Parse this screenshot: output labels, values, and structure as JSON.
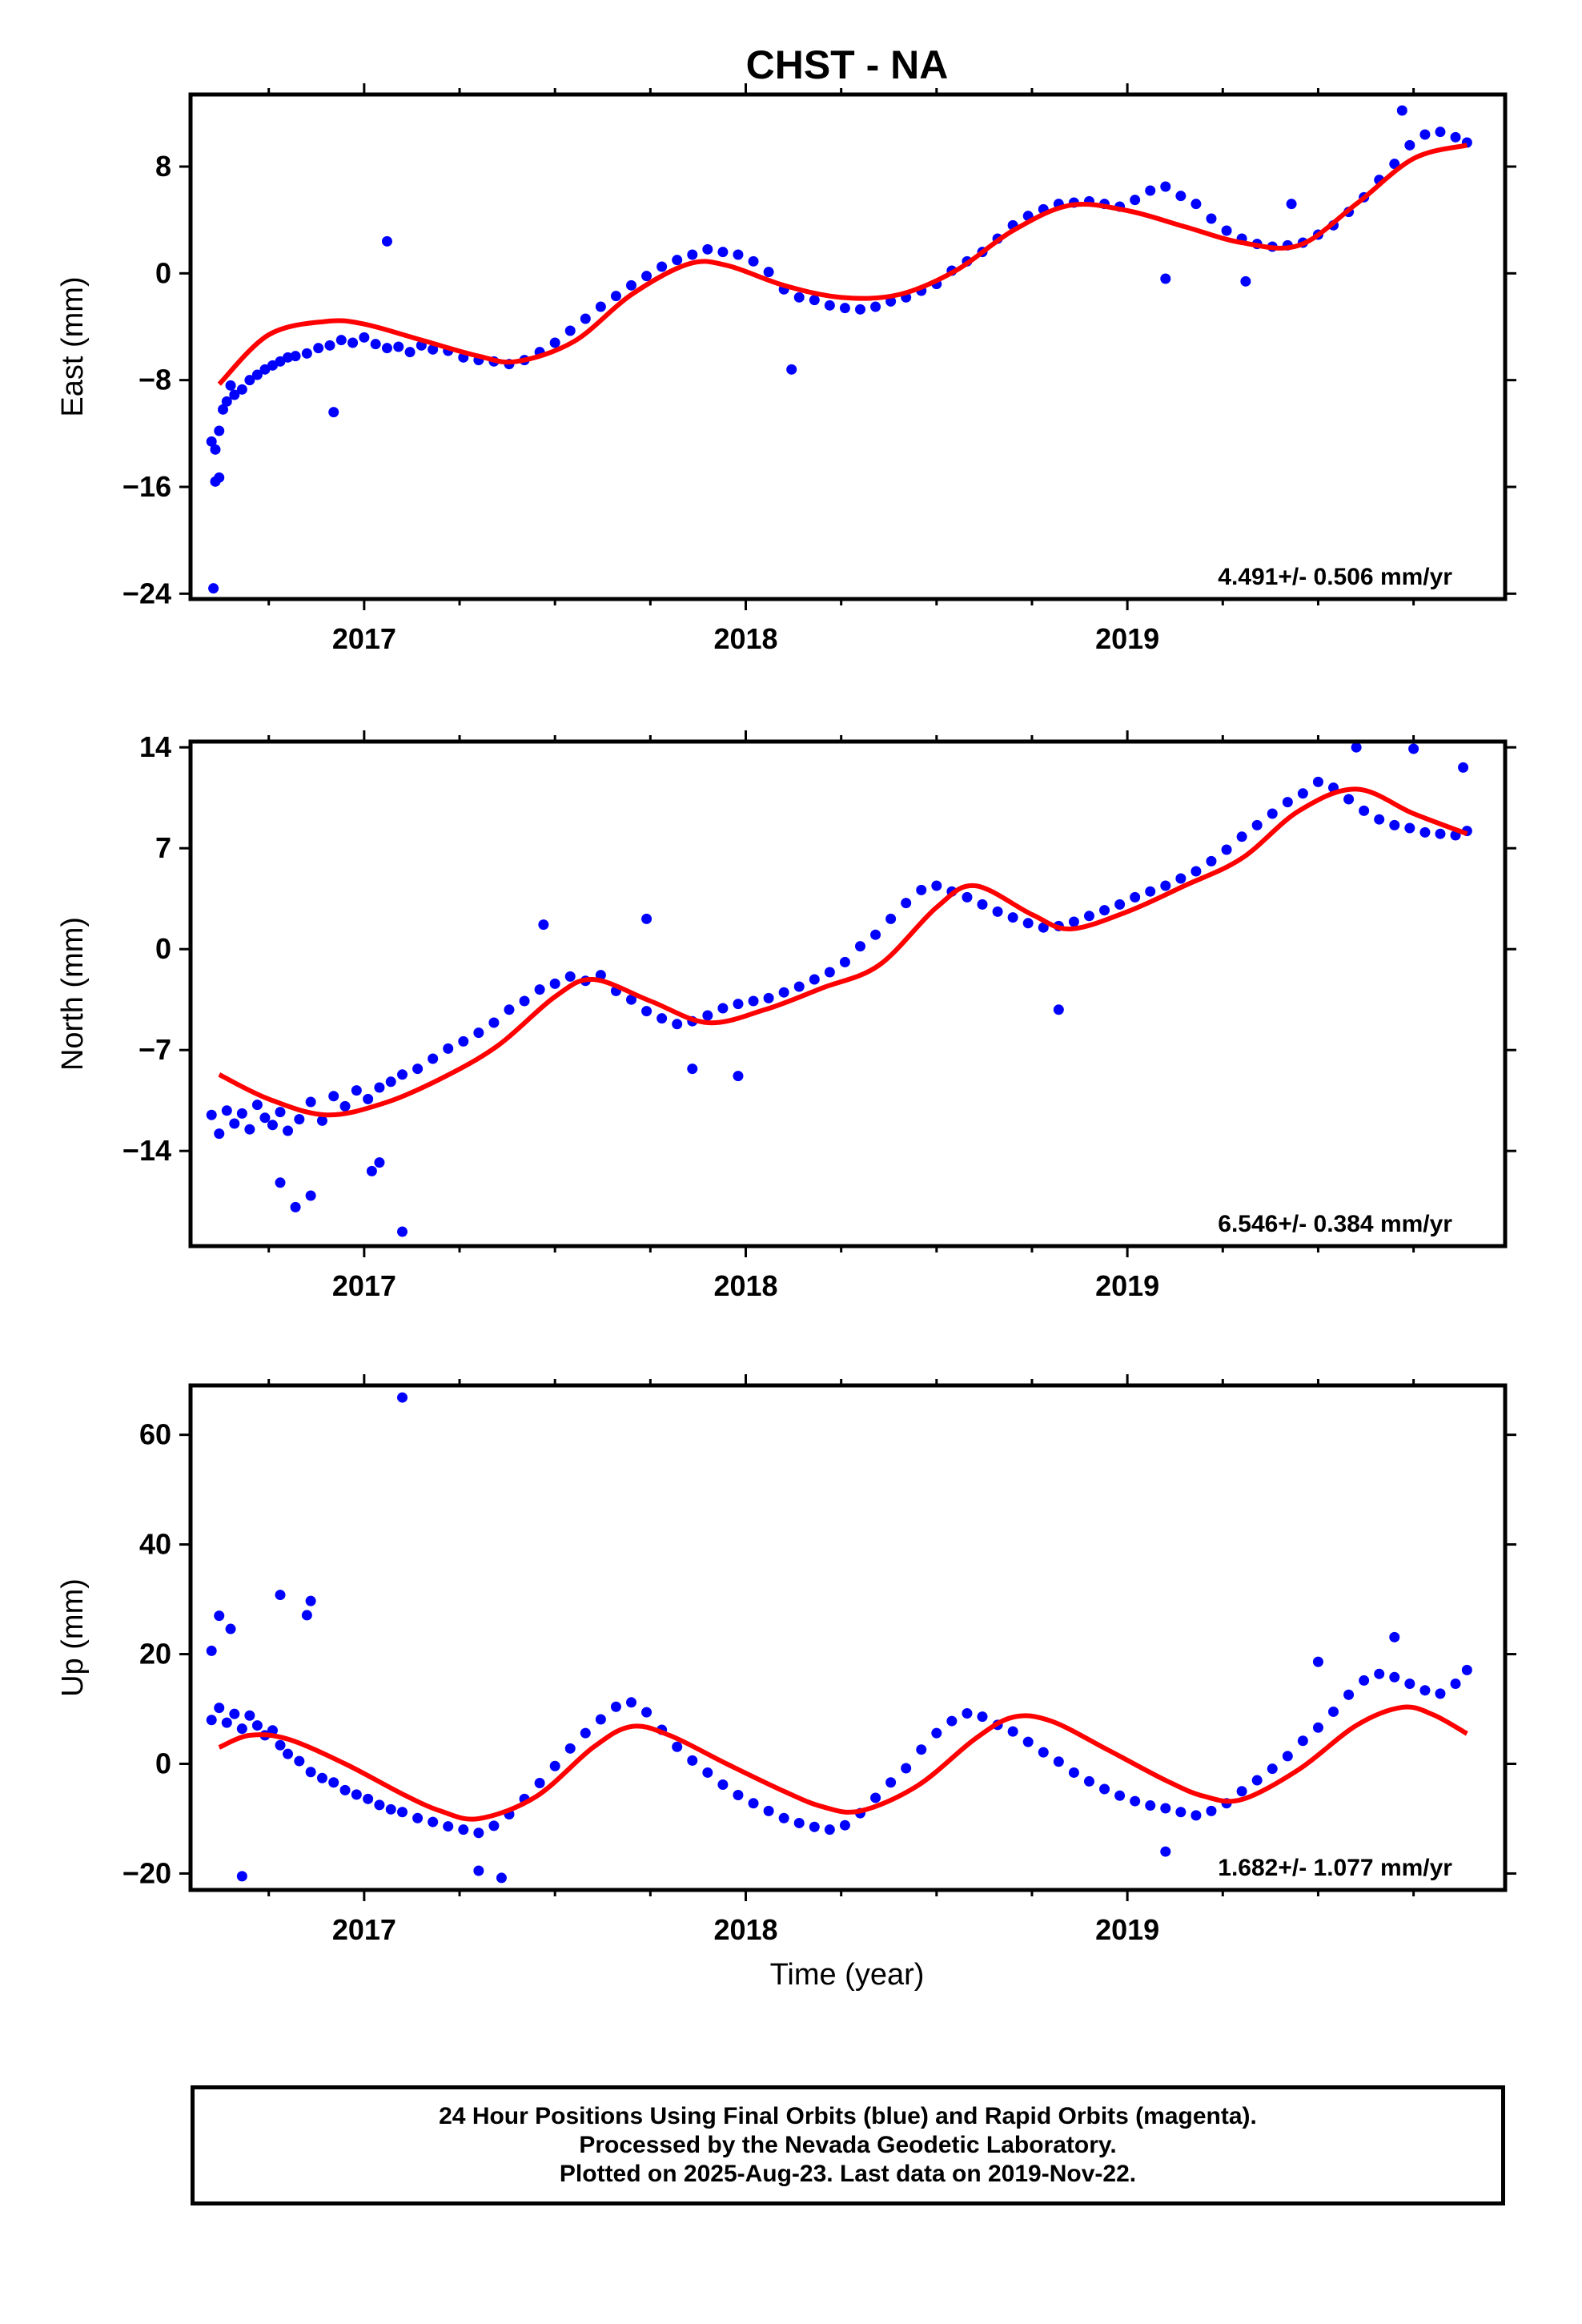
{
  "title": "CHST - NA",
  "x_axis_label": "Time (year)",
  "caption": {
    "line1": "24 Hour Positions Using Final Orbits (blue) and Rapid Orbits (magenta).",
    "line2": "Processed by the Nevada Geodetic Laboratory.",
    "line3": "Plotted on 2025-Aug-23. Last data on 2019-Nov-22."
  },
  "colors": {
    "points": "#0000ff",
    "fit": "#ff0000",
    "frame": "#000000"
  },
  "chart_data": [
    {
      "type": "scatter",
      "ylabel": "East (mm)",
      "xlim": [
        2016.545,
        2019.99
      ],
      "ylim": [
        -24.4,
        13.4
      ],
      "yticks": [
        8,
        0,
        -8,
        -16,
        -24
      ],
      "ytick_labels": [
        "8",
        "0",
        "−8",
        "−16",
        "−24"
      ],
      "xticks": [
        2017,
        2018,
        2019
      ],
      "rate_label": "4.491+/- 0.506 mm/yr",
      "fit_curve": {
        "x": [
          2016.62,
          2016.75,
          2016.9,
          2017.0,
          2017.15,
          2017.3,
          2017.4,
          2017.55,
          2017.7,
          2017.85,
          2017.95,
          2018.1,
          2018.25,
          2018.4,
          2018.55,
          2018.7,
          2018.85,
          2019.0,
          2019.15,
          2019.3,
          2019.45,
          2019.6,
          2019.75,
          2019.89
        ],
        "y": [
          -8.3,
          -4.6,
          -3.6,
          -3.8,
          -5.0,
          -6.2,
          -6.6,
          -5.1,
          -1.6,
          0.7,
          0.6,
          -0.9,
          -1.8,
          -1.6,
          0.2,
          3.2,
          5.1,
          4.7,
          3.5,
          2.3,
          2.1,
          5.2,
          8.6,
          9.6
        ]
      },
      "series": [
        {
          "name": "",
          "x": [
            2016.6,
            2016.61,
            2016.62,
            2016.63,
            2016.64,
            2016.65,
            2016.66,
            2016.68,
            2016.7,
            2016.72,
            2016.74,
            2016.76,
            2016.78,
            2016.8,
            2016.82,
            2016.85,
            2016.88,
            2016.91,
            2016.94,
            2016.97,
            2017.0,
            2017.03,
            2017.06,
            2017.09,
            2017.12,
            2017.15,
            2017.18,
            2017.22,
            2017.26,
            2017.3,
            2017.34,
            2017.38,
            2017.42,
            2017.46,
            2017.5,
            2017.54,
            2017.58,
            2017.62,
            2017.66,
            2017.7,
            2017.74,
            2017.78,
            2017.82,
            2017.86,
            2017.9,
            2017.94,
            2017.98,
            2018.02,
            2018.06,
            2018.1,
            2018.14,
            2018.18,
            2018.22,
            2018.26,
            2018.3,
            2018.34,
            2018.38,
            2018.42,
            2018.46,
            2018.5,
            2018.54,
            2018.58,
            2018.62,
            2018.66,
            2018.7,
            2018.74,
            2018.78,
            2018.82,
            2018.86,
            2018.9,
            2018.94,
            2018.98,
            2019.02,
            2019.06,
            2019.1,
            2019.14,
            2019.18,
            2019.22,
            2019.26,
            2019.3,
            2019.34,
            2019.38,
            2019.42,
            2019.46,
            2019.5,
            2019.54,
            2019.58,
            2019.62,
            2019.66,
            2019.7,
            2019.74,
            2019.78,
            2019.82,
            2019.86,
            2019.89,
            2016.61,
            2016.62,
            2016.605,
            2017.06,
            2016.92,
            2018.12,
            2019.1,
            2019.31,
            2019.43,
            2019.72
          ],
          "y": [
            -12.6,
            -13.2,
            -11.8,
            -10.2,
            -9.6,
            -8.4,
            -9.1,
            -8.7,
            -8.0,
            -7.6,
            -7.2,
            -6.9,
            -6.6,
            -6.3,
            -6.2,
            -6.0,
            -5.6,
            -5.4,
            -5.0,
            -5.2,
            -4.8,
            -5.3,
            -5.6,
            -5.5,
            -5.9,
            -5.4,
            -5.7,
            -5.8,
            -6.3,
            -6.5,
            -6.6,
            -6.8,
            -6.5,
            -5.9,
            -5.2,
            -4.3,
            -3.4,
            -2.5,
            -1.7,
            -0.9,
            -0.2,
            0.5,
            1.0,
            1.4,
            1.8,
            1.6,
            1.4,
            0.9,
            0.1,
            -1.2,
            -1.8,
            -2.0,
            -2.4,
            -2.6,
            -2.7,
            -2.5,
            -2.1,
            -1.8,
            -1.3,
            -0.8,
            0.2,
            0.9,
            1.6,
            2.6,
            3.6,
            4.3,
            4.8,
            5.2,
            5.3,
            5.4,
            5.2,
            5.0,
            5.5,
            6.2,
            6.5,
            5.8,
            5.2,
            4.1,
            3.2,
            2.6,
            2.2,
            2.0,
            2.1,
            2.3,
            2.9,
            3.6,
            4.6,
            5.7,
            7.0,
            8.2,
            9.6,
            10.4,
            10.6,
            10.2,
            9.8,
            -15.6,
            -15.3,
            -23.6,
            2.4,
            -10.4,
            -7.2,
            -0.4,
            -0.6,
            5.2,
            12.2
          ]
        }
      ]
    },
    {
      "type": "scatter",
      "ylabel": "North (mm)",
      "xlim": [
        2016.545,
        2019.99
      ],
      "ylim": [
        -20.6,
        14.4
      ],
      "yticks": [
        14,
        7,
        0,
        -7,
        -14
      ],
      "ytick_labels": [
        "14",
        "7",
        "0",
        "−7",
        "−14"
      ],
      "xticks": [
        2017,
        2018,
        2019
      ],
      "rate_label": "6.546+/- 0.384 mm/yr",
      "fit_curve": {
        "x": [
          2016.62,
          2016.75,
          2016.9,
          2017.05,
          2017.2,
          2017.35,
          2017.5,
          2017.6,
          2017.75,
          2017.9,
          2018.05,
          2018.2,
          2018.35,
          2018.5,
          2018.6,
          2018.75,
          2018.85,
          2019.0,
          2019.15,
          2019.3,
          2019.45,
          2019.6,
          2019.75,
          2019.89
        ],
        "y": [
          -8.7,
          -10.4,
          -11.5,
          -10.7,
          -9.0,
          -6.7,
          -3.3,
          -2.1,
          -3.6,
          -5.1,
          -4.2,
          -2.7,
          -1.1,
          2.9,
          4.4,
          2.4,
          1.4,
          2.6,
          4.4,
          6.3,
          9.6,
          11.1,
          9.4,
          8.0
        ]
      },
      "series": [
        {
          "name": "",
          "x": [
            2016.6,
            2016.62,
            2016.64,
            2016.66,
            2016.68,
            2016.7,
            2016.72,
            2016.74,
            2016.76,
            2016.78,
            2016.8,
            2016.83,
            2016.86,
            2016.89,
            2016.92,
            2016.95,
            2016.98,
            2017.01,
            2017.04,
            2017.07,
            2017.1,
            2017.14,
            2017.18,
            2017.22,
            2017.26,
            2017.3,
            2017.34,
            2017.38,
            2017.42,
            2017.46,
            2017.5,
            2017.54,
            2017.58,
            2017.62,
            2017.66,
            2017.7,
            2017.74,
            2017.78,
            2017.82,
            2017.86,
            2017.9,
            2017.94,
            2017.98,
            2018.02,
            2018.06,
            2018.1,
            2018.14,
            2018.18,
            2018.22,
            2018.26,
            2018.3,
            2018.34,
            2018.38,
            2018.42,
            2018.46,
            2018.5,
            2018.54,
            2018.58,
            2018.62,
            2018.66,
            2018.7,
            2018.74,
            2018.78,
            2018.82,
            2018.86,
            2018.9,
            2018.94,
            2018.98,
            2019.02,
            2019.06,
            2019.1,
            2019.14,
            2019.18,
            2019.22,
            2019.26,
            2019.3,
            2019.34,
            2019.38,
            2019.42,
            2019.46,
            2019.5,
            2019.54,
            2019.58,
            2019.62,
            2019.66,
            2019.7,
            2019.74,
            2019.78,
            2019.82,
            2019.86,
            2019.89,
            2016.78,
            2016.82,
            2016.86,
            2017.02,
            2017.04,
            2017.1,
            2017.47,
            2017.74,
            2017.86,
            2017.98,
            2018.82,
            2019.6,
            2019.75,
            2019.88
          ],
          "y": [
            -11.5,
            -12.8,
            -11.2,
            -12.1,
            -11.4,
            -12.5,
            -10.8,
            -11.7,
            -12.2,
            -11.3,
            -12.6,
            -11.8,
            -10.6,
            -11.9,
            -10.2,
            -10.9,
            -9.8,
            -10.4,
            -9.6,
            -9.2,
            -8.7,
            -8.3,
            -7.6,
            -6.9,
            -6.4,
            -5.8,
            -5.1,
            -4.2,
            -3.6,
            -2.8,
            -2.4,
            -1.9,
            -2.2,
            -1.8,
            -2.9,
            -3.5,
            -4.3,
            -4.8,
            -5.2,
            -5.0,
            -4.6,
            -4.1,
            -3.8,
            -3.6,
            -3.4,
            -3.0,
            -2.6,
            -2.1,
            -1.6,
            -0.9,
            0.2,
            1.0,
            2.1,
            3.2,
            4.1,
            4.4,
            4.0,
            3.6,
            3.1,
            2.6,
            2.2,
            1.8,
            1.5,
            1.6,
            1.9,
            2.3,
            2.7,
            3.1,
            3.6,
            4.0,
            4.4,
            4.9,
            5.4,
            6.1,
            6.9,
            7.8,
            8.6,
            9.4,
            10.2,
            10.8,
            11.6,
            11.2,
            10.4,
            9.6,
            9.0,
            8.6,
            8.4,
            8.1,
            8.0,
            7.9,
            8.2,
            -16.2,
            -17.9,
            -17.1,
            -15.4,
            -14.8,
            -19.6,
            1.7,
            2.1,
            -8.3,
            -8.8,
            -4.2,
            14.0,
            13.9,
            12.6
          ]
        }
      ]
    },
    {
      "type": "scatter",
      "ylabel": "Up (mm)",
      "xlim": [
        2016.545,
        2019.99
      ],
      "ylim": [
        -23,
        69
      ],
      "yticks": [
        60,
        40,
        20,
        0,
        -20
      ],
      "ytick_labels": [
        "60",
        "40",
        "20",
        "0",
        "−20"
      ],
      "xticks": [
        2017,
        2018,
        2019
      ],
      "rate_label": "1.682+/- 1.077 mm/yr",
      "fit_curve": {
        "x": [
          2016.62,
          2016.7,
          2016.8,
          2016.95,
          2017.1,
          2017.2,
          2017.3,
          2017.45,
          2017.6,
          2017.7,
          2017.8,
          2017.95,
          2018.1,
          2018.2,
          2018.3,
          2018.45,
          2018.6,
          2018.7,
          2018.8,
          2018.95,
          2019.1,
          2019.2,
          2019.3,
          2019.45,
          2019.6,
          2019.72,
          2019.8,
          2019.89
        ],
        "y": [
          3.0,
          5.2,
          4.5,
          0.0,
          -5.5,
          -8.6,
          -10.0,
          -6.0,
          3.0,
          6.8,
          5.2,
          0.0,
          -5.0,
          -7.8,
          -8.6,
          -4.0,
          4.5,
          8.5,
          7.8,
          2.5,
          -3.0,
          -5.9,
          -6.5,
          -1.0,
          7.0,
          10.3,
          9.0,
          5.5
        ]
      },
      "series": [
        {
          "name": "",
          "x": [
            2016.6,
            2016.62,
            2016.64,
            2016.66,
            2016.68,
            2016.7,
            2016.72,
            2016.74,
            2016.76,
            2016.78,
            2016.8,
            2016.83,
            2016.86,
            2016.89,
            2016.92,
            2016.95,
            2016.98,
            2017.01,
            2017.04,
            2017.07,
            2017.1,
            2017.14,
            2017.18,
            2017.22,
            2017.26,
            2017.3,
            2017.34,
            2017.38,
            2017.42,
            2017.46,
            2017.5,
            2017.54,
            2017.58,
            2017.62,
            2017.66,
            2017.7,
            2017.74,
            2017.78,
            2017.82,
            2017.86,
            2017.9,
            2017.94,
            2017.98,
            2018.02,
            2018.06,
            2018.1,
            2018.14,
            2018.18,
            2018.22,
            2018.26,
            2018.3,
            2018.34,
            2018.38,
            2018.42,
            2018.46,
            2018.5,
            2018.54,
            2018.58,
            2018.62,
            2018.66,
            2018.7,
            2018.74,
            2018.78,
            2018.82,
            2018.86,
            2018.9,
            2018.94,
            2018.98,
            2019.02,
            2019.06,
            2019.1,
            2019.14,
            2019.18,
            2019.22,
            2019.26,
            2019.3,
            2019.34,
            2019.38,
            2019.42,
            2019.46,
            2019.5,
            2019.54,
            2019.58,
            2019.62,
            2019.66,
            2019.7,
            2019.74,
            2019.78,
            2019.82,
            2019.86,
            2019.89,
            2017.1,
            2016.78,
            2016.85,
            2016.86,
            2016.65,
            2016.6,
            2016.62,
            2016.68,
            2017.3,
            2017.36,
            2019.5,
            2019.1,
            2019.7
          ],
          "y": [
            8.0,
            10.2,
            7.5,
            9.1,
            6.4,
            8.8,
            7.0,
            5.2,
            6.1,
            3.4,
            1.8,
            0.5,
            -1.5,
            -2.6,
            -3.4,
            -4.8,
            -5.6,
            -6.4,
            -7.5,
            -8.3,
            -8.8,
            -9.9,
            -10.6,
            -11.4,
            -12.0,
            -12.6,
            -11.3,
            -9.2,
            -6.4,
            -3.5,
            -0.4,
            2.8,
            5.6,
            8.1,
            10.4,
            11.2,
            9.4,
            6.2,
            3.1,
            0.6,
            -1.6,
            -3.8,
            -5.7,
            -7.2,
            -8.6,
            -9.9,
            -10.8,
            -11.5,
            -12.0,
            -11.2,
            -9.0,
            -6.2,
            -3.4,
            -0.8,
            2.6,
            5.6,
            7.8,
            9.2,
            8.6,
            7.1,
            5.9,
            4.0,
            2.1,
            0.4,
            -1.6,
            -3.2,
            -4.6,
            -5.8,
            -6.8,
            -7.6,
            -8.1,
            -8.8,
            -9.4,
            -8.6,
            -7.2,
            -5.0,
            -3.0,
            -0.9,
            1.4,
            4.2,
            6.6,
            9.5,
            12.6,
            15.2,
            16.4,
            15.8,
            14.6,
            13.4,
            12.8,
            14.6,
            17.1,
            66.8,
            30.8,
            27.1,
            29.7,
            24.6,
            20.6,
            27.0,
            -20.5,
            -19.5,
            -20.8,
            18.6,
            -16.0,
            23.1
          ]
        }
      ]
    }
  ]
}
